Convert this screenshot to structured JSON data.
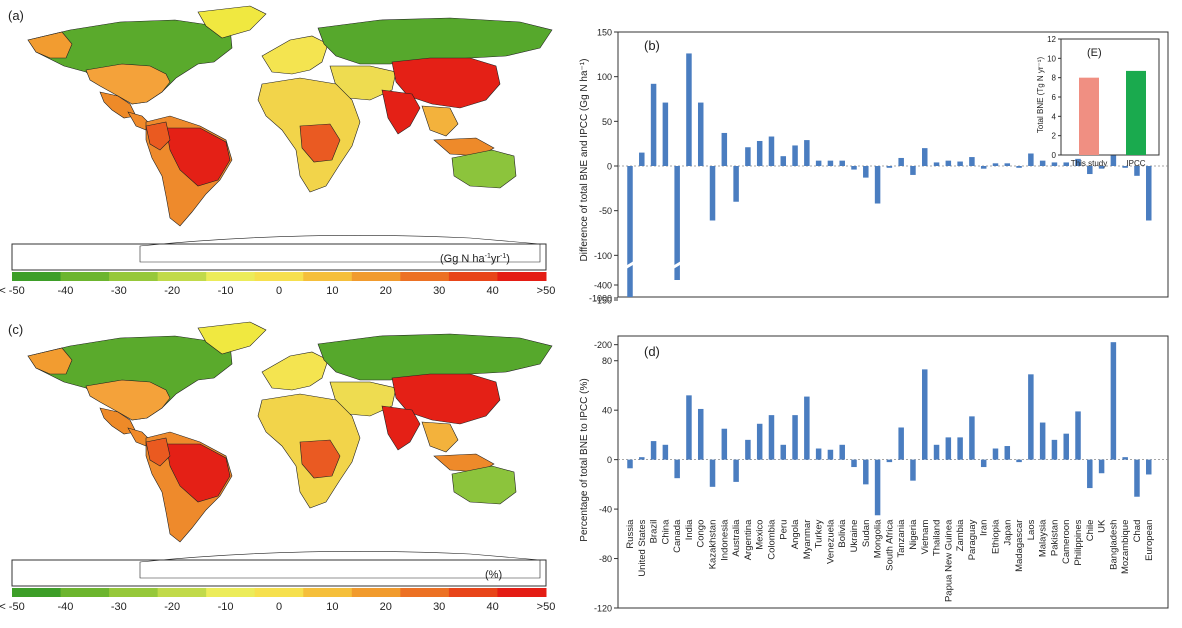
{
  "panels": {
    "a": {
      "label": "(a)",
      "unit_parts": [
        "(Gg N ha",
        "-1",
        "yr",
        "-1",
        ")"
      ],
      "colorbar": {
        "ticks": [
          "< -50",
          "-40",
          "-30",
          "-20",
          "-10",
          "0",
          "10",
          "20",
          "30",
          "40",
          ">50"
        ],
        "colors": [
          "#3d9e28",
          "#6cb52e",
          "#96c83a",
          "#c1da4a",
          "#ecec5a",
          "#f6e04e",
          "#f5bf3b",
          "#f19b2e",
          "#ec7124",
          "#e84519",
          "#e41d14"
        ]
      }
    },
    "c": {
      "label": "(c)",
      "unit": "(%)",
      "colorbar": {
        "ticks": [
          "< -50",
          "-40",
          "-30",
          "-20",
          "-10",
          "0",
          "10",
          "20",
          "30",
          "40",
          ">50"
        ],
        "colors": [
          "#3d9e28",
          "#6cb52e",
          "#96c83a",
          "#c1da4a",
          "#ecec5a",
          "#f6e04e",
          "#f5bf3b",
          "#f19b2e",
          "#ec7124",
          "#e84519",
          "#e41d14"
        ]
      }
    }
  },
  "chart_data": [
    {
      "panel": "(b)",
      "type": "bar",
      "ylabel": "Difference of total BNE and IPCC (Gg N ha⁻¹)",
      "yticks": [
        "150",
        "100",
        "50",
        "0",
        "-50",
        "-100",
        "-150",
        "-200"
      ],
      "yticks_broken": [
        "-400",
        "-1000"
      ],
      "ylim": [
        -200,
        150
      ],
      "axis_break": true,
      "bar_color": "#4a7dc0",
      "categories": [
        "Russia",
        "United States",
        "Brazil",
        "China",
        "Canada",
        "India",
        "Congo",
        "Kazakhstan",
        "Indonesia",
        "Australia",
        "Argentina",
        "Mexico",
        "Colombia",
        "Peru",
        "Angola",
        "Myanmar",
        "Turkey",
        "Venezuela",
        "Bolivia",
        "Ukraine",
        "Sudan",
        "Mongolia",
        "South Africa",
        "Tanzania",
        "Nigeria",
        "Vietnam",
        "Thailand",
        "Papua New Guinea",
        "Zambia",
        "Paraguay",
        "Iran",
        "Ethiopia",
        "Japan",
        "Madagascar",
        "Laos",
        "Malaysia",
        "Pakistan",
        "Cameroon",
        "Philippines",
        "Chile",
        "UK",
        "Bangladesh",
        "Mozambique",
        "Chad",
        "European"
      ],
      "values": [
        -960,
        15,
        92,
        71,
        -390,
        126,
        71,
        -61,
        37,
        -40,
        21,
        28,
        33,
        11,
        23,
        29,
        6,
        6,
        6,
        -4,
        -13,
        -42,
        -2,
        9,
        -10,
        20,
        4,
        6,
        5,
        10,
        -3,
        3,
        3,
        -2,
        14,
        6,
        4,
        4,
        8,
        -9,
        -3,
        12,
        -2,
        -11,
        -61
      ]
    },
    {
      "panel": "(E)",
      "type": "bar",
      "ylabel": "Total BNE  (Tg N yr⁻¹)",
      "categories": [
        "This study",
        "IPCC"
      ],
      "values": [
        8.0,
        8.7
      ],
      "colors": [
        "#f08f82",
        "#1aaa4e"
      ],
      "ylim": [
        0,
        12
      ],
      "yticks": [
        "0",
        "2",
        "4",
        "6",
        "8",
        "10",
        "12"
      ]
    },
    {
      "panel": "(d)",
      "type": "bar",
      "ylabel": "Percentage of total BNE to IPCC (%)",
      "ylim": [
        -120,
        100
      ],
      "yticks": [
        "80",
        "40",
        "0",
        "-40",
        "-80",
        "-120"
      ],
      "bar_color": "#4a7dc0",
      "categories": [
        "Russia",
        "United States",
        "Brazil",
        "China",
        "Canada",
        "India",
        "Congo",
        "Kazakhstan",
        "Indonesia",
        "Australia",
        "Argentina",
        "Mexico",
        "Colombia",
        "Peru",
        "Angola",
        "Myanmar",
        "Turkey",
        "Venezuela",
        "Bolivia",
        "Ukraine",
        "Sudan",
        "Mongolia",
        "South Africa",
        "Tanzania",
        "Nigeria",
        "Vietnam",
        "Thailand",
        "Papua New Guinea",
        "Zambia",
        "Paraguay",
        "Iran",
        "Ethiopia",
        "Japan",
        "Madagascar",
        "Laos",
        "Malaysia",
        "Pakistan",
        "Cameroon",
        "Philippines",
        "Chile",
        "UK",
        "Bangladesh",
        "Mozambique",
        "Chad",
        "European"
      ],
      "values": [
        -7,
        2,
        15,
        12,
        -15,
        52,
        41,
        -22,
        25,
        -18,
        16,
        29,
        36,
        12,
        36,
        51,
        9,
        8,
        12,
        -6,
        -20,
        -45,
        -2,
        26,
        -17,
        73,
        12,
        18,
        18,
        35,
        -6,
        9,
        11,
        -2,
        69,
        30,
        16,
        21,
        39,
        -23,
        -11,
        95,
        2,
        -30,
        -12
      ]
    }
  ]
}
